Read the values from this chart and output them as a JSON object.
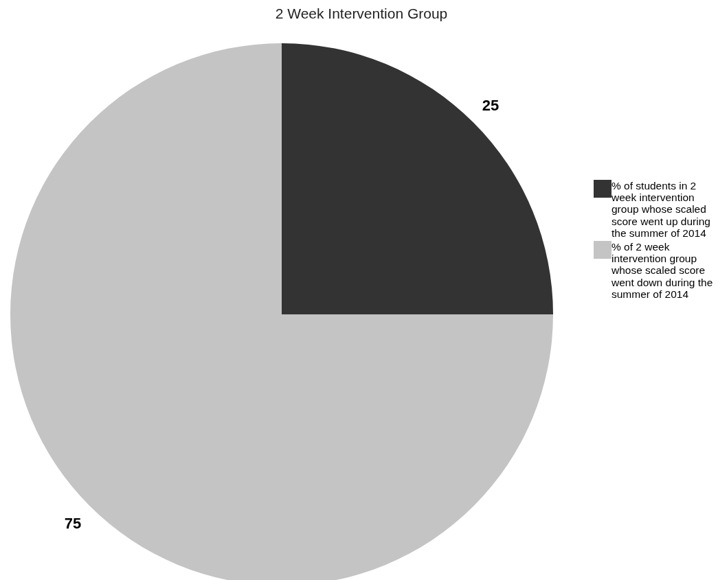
{
  "chart_data": {
    "type": "pie",
    "title": "2 Week Intervention Group",
    "categories": [
      "% of students in 2 week intervention group whose scaled score went up during the summer of 2014",
      "% of 2 week intervention group whose scaled score went down during the summer of 2014"
    ],
    "values": [
      25,
      75
    ],
    "colors": [
      "#333333",
      "#c4c4c4"
    ],
    "data_labels": true,
    "legend": "right"
  }
}
